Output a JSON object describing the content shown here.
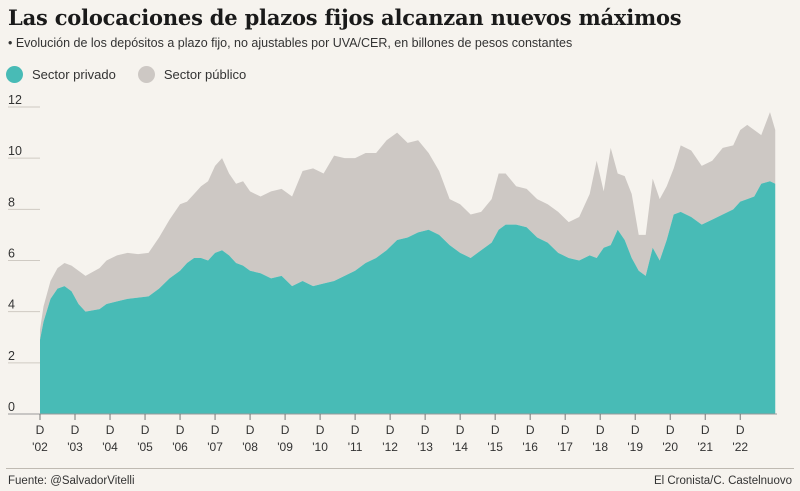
{
  "chart_data": {
    "type": "area",
    "stacked": true,
    "title": "Las colocaciones de plazos fijos alcanzan nuevos máximos",
    "subtitle": "• Evolución de los depósitos a plazo fijo, no ajustables por UVA/CER, en billones de pesos constantes",
    "ylim": [
      0,
      12
    ],
    "yticks": [
      0,
      2,
      4,
      6,
      8,
      10,
      12
    ],
    "xlim": [
      2002.0,
      2023.05
    ],
    "xticks": [
      {
        "x": 2002.0,
        "top": "D",
        "bottom": "'02"
      },
      {
        "x": 2003.0,
        "top": "D",
        "bottom": "'03"
      },
      {
        "x": 2004.0,
        "top": "D",
        "bottom": "'04"
      },
      {
        "x": 2005.0,
        "top": "D",
        "bottom": "'05"
      },
      {
        "x": 2006.0,
        "top": "D",
        "bottom": "'06"
      },
      {
        "x": 2007.0,
        "top": "D",
        "bottom": "'07"
      },
      {
        "x": 2008.0,
        "top": "D",
        "bottom": "'08"
      },
      {
        "x": 2009.0,
        "top": "D",
        "bottom": "'09"
      },
      {
        "x": 2010.0,
        "top": "D",
        "bottom": "'10"
      },
      {
        "x": 2011.0,
        "top": "D",
        "bottom": "'11"
      },
      {
        "x": 2012.0,
        "top": "D",
        "bottom": "'12"
      },
      {
        "x": 2013.0,
        "top": "D",
        "bottom": "'13"
      },
      {
        "x": 2014.0,
        "top": "D",
        "bottom": "'14"
      },
      {
        "x": 2015.0,
        "top": "D",
        "bottom": "'15"
      },
      {
        "x": 2016.0,
        "top": "D",
        "bottom": "'16"
      },
      {
        "x": 2017.0,
        "top": "D",
        "bottom": "'17"
      },
      {
        "x": 2018.0,
        "top": "D",
        "bottom": "'18"
      },
      {
        "x": 2019.0,
        "top": "D",
        "bottom": "'19"
      },
      {
        "x": 2020.0,
        "top": "D",
        "bottom": "'20"
      },
      {
        "x": 2021.0,
        "top": "D",
        "bottom": "'21"
      },
      {
        "x": 2022.0,
        "top": "D",
        "bottom": "'22"
      }
    ],
    "x": [
      2002.0,
      2002.1,
      2002.3,
      2002.5,
      2002.7,
      2002.9,
      2003.1,
      2003.3,
      2003.5,
      2003.7,
      2003.9,
      2004.2,
      2004.5,
      2004.8,
      2005.1,
      2005.4,
      2005.7,
      2006.0,
      2006.2,
      2006.4,
      2006.6,
      2006.8,
      2007.0,
      2007.2,
      2007.4,
      2007.6,
      2007.8,
      2008.0,
      2008.3,
      2008.6,
      2008.9,
      2009.2,
      2009.5,
      2009.8,
      2010.1,
      2010.4,
      2010.7,
      2011.0,
      2011.3,
      2011.6,
      2011.9,
      2012.2,
      2012.5,
      2012.8,
      2013.1,
      2013.4,
      2013.7,
      2014.0,
      2014.3,
      2014.6,
      2014.9,
      2015.1,
      2015.3,
      2015.6,
      2015.9,
      2016.2,
      2016.5,
      2016.8,
      2017.1,
      2017.4,
      2017.7,
      2017.9,
      2018.1,
      2018.3,
      2018.5,
      2018.7,
      2018.9,
      2019.1,
      2019.3,
      2019.5,
      2019.7,
      2019.9,
      2020.1,
      2020.3,
      2020.6,
      2020.9,
      2021.2,
      2021.5,
      2021.8,
      2022.0,
      2022.2,
      2022.4,
      2022.6,
      2022.85,
      2023.0
    ],
    "series": [
      {
        "name": "Sector privado",
        "color": "#48bbb6",
        "values": [
          2.9,
          3.6,
          4.5,
          4.9,
          5.0,
          4.8,
          4.3,
          4.0,
          4.05,
          4.1,
          4.3,
          4.4,
          4.5,
          4.55,
          4.6,
          4.9,
          5.3,
          5.6,
          5.9,
          6.1,
          6.1,
          6.0,
          6.3,
          6.4,
          6.2,
          5.9,
          5.8,
          5.6,
          5.5,
          5.3,
          5.4,
          5.0,
          5.2,
          5.0,
          5.1,
          5.2,
          5.4,
          5.6,
          5.9,
          6.1,
          6.4,
          6.8,
          6.9,
          7.1,
          7.2,
          7.0,
          6.6,
          6.3,
          6.1,
          6.4,
          6.7,
          7.2,
          7.4,
          7.4,
          7.3,
          6.9,
          6.7,
          6.3,
          6.1,
          6.0,
          6.2,
          6.1,
          6.5,
          6.6,
          7.2,
          6.8,
          6.1,
          5.6,
          5.4,
          6.5,
          6.0,
          6.8,
          7.8,
          7.9,
          7.7,
          7.4,
          7.6,
          7.8,
          8.0,
          8.3,
          8.4,
          8.5,
          9.0,
          9.1,
          9.0
        ]
      },
      {
        "name": "Sector público",
        "color": "#cdc8c4",
        "values": [
          0.4,
          0.6,
          0.7,
          0.8,
          0.9,
          1.0,
          1.3,
          1.4,
          1.5,
          1.6,
          1.7,
          1.8,
          1.8,
          1.7,
          1.7,
          2.0,
          2.3,
          2.6,
          2.4,
          2.5,
          2.8,
          3.1,
          3.4,
          3.6,
          3.2,
          3.1,
          3.3,
          3.1,
          3.0,
          3.4,
          3.4,
          3.5,
          4.3,
          4.6,
          4.3,
          4.9,
          4.6,
          4.4,
          4.3,
          4.1,
          4.3,
          4.2,
          3.7,
          3.6,
          3.0,
          2.5,
          1.8,
          1.9,
          1.7,
          1.5,
          1.7,
          2.2,
          2.0,
          1.5,
          1.5,
          1.5,
          1.5,
          1.6,
          1.4,
          1.7,
          2.4,
          3.8,
          2.2,
          3.8,
          2.2,
          2.5,
          2.5,
          1.4,
          1.6,
          2.7,
          2.4,
          2.1,
          1.8,
          2.6,
          2.6,
          2.3,
          2.3,
          2.6,
          2.5,
          2.8,
          2.9,
          2.6,
          1.9,
          2.7,
          2.1
        ]
      }
    ]
  },
  "footer": {
    "source": "Fuente: @SalvadorVitelli",
    "credit": "El Cronista/C. Castelnuovo"
  }
}
